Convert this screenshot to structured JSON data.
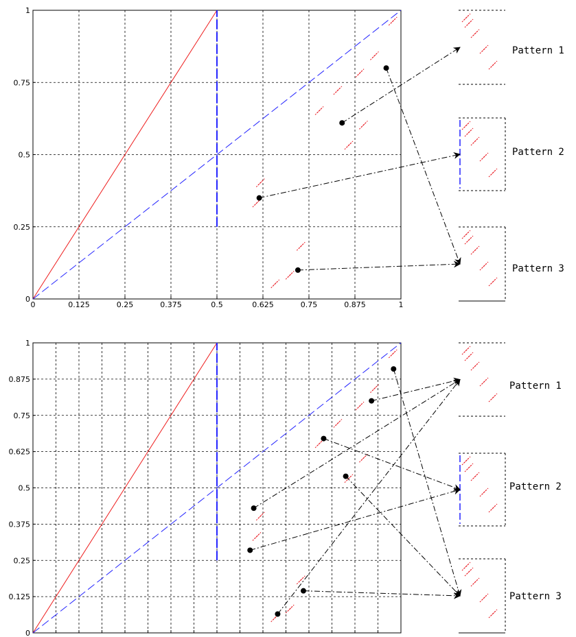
{
  "chart_data": [
    {
      "type": "line",
      "xlim": [
        0,
        1
      ],
      "ylim": [
        0,
        1
      ],
      "xticks": [
        "0",
        "0.125",
        "0.25",
        "0.375",
        "0.5",
        "0.625",
        "0.75",
        "0.875",
        "1"
      ],
      "yticks": [
        "0",
        "0.25",
        "0.5",
        "0.75",
        "1"
      ],
      "grid": true,
      "series": [
        {
          "style": "solid-red",
          "points": [
            [
              0,
              0
            ],
            [
              0.5,
              1
            ]
          ]
        },
        {
          "style": "dashed-blue",
          "points": [
            [
              0,
              0
            ],
            [
              0.5,
              0.5
            ],
            [
              1,
              1
            ]
          ]
        },
        {
          "style": "dashed-blue-vertical",
          "points": [
            [
              0.5,
              0.25
            ],
            [
              0.5,
              1
            ]
          ]
        }
      ],
      "patterns": [
        "Pattern 1",
        "Pattern 2",
        "Pattern 3"
      ],
      "markers": [
        {
          "x": 0.615,
          "y": 0.35,
          "target": 2
        },
        {
          "x": 0.84,
          "y": 0.61,
          "target": 1
        },
        {
          "x": 0.96,
          "y": 0.8,
          "target": 3
        },
        {
          "x": 0.72,
          "y": 0.1,
          "target": 3
        }
      ]
    },
    {
      "type": "line",
      "xlim": [
        0,
        1
      ],
      "ylim": [
        0,
        1
      ],
      "xticks": [
        "0",
        "0.0625",
        "0.125",
        "0.1875",
        "0.25",
        "0.3125",
        "0.375",
        "0.4375",
        "0.5",
        "0.5625",
        "0.625",
        "0.6875",
        "0.75",
        "0.8125",
        "0.875",
        "0.9375",
        "1"
      ],
      "yticks": [
        "0",
        "0.125",
        "0.25",
        "0.375",
        "0.5",
        "0.625",
        "0.75",
        "0.875",
        "1"
      ],
      "grid": true,
      "series": [
        {
          "style": "solid-red",
          "points": [
            [
              0,
              0
            ],
            [
              0.5,
              1
            ]
          ]
        },
        {
          "style": "dashed-blue",
          "points": [
            [
              0,
              0
            ],
            [
              0.5,
              0.5
            ],
            [
              1,
              1
            ]
          ]
        },
        {
          "style": "dashed-blue-vertical",
          "points": [
            [
              0.5,
              0.25
            ],
            [
              0.5,
              1
            ]
          ]
        }
      ],
      "patterns": [
        "Pattern 1",
        "Pattern 2",
        "Pattern 3"
      ],
      "markers": [
        {
          "x": 0.59,
          "y": 0.285,
          "target": 2
        },
        {
          "x": 0.6,
          "y": 0.43,
          "target": 1
        },
        {
          "x": 0.79,
          "y": 0.67,
          "target": 2
        },
        {
          "x": 0.85,
          "y": 0.54,
          "target": 3
        },
        {
          "x": 0.92,
          "y": 0.8,
          "target": 1
        },
        {
          "x": 0.98,
          "y": 0.91,
          "target": 3
        },
        {
          "x": 0.665,
          "y": 0.065,
          "target": 1
        },
        {
          "x": 0.735,
          "y": 0.145,
          "target": 3
        }
      ]
    }
  ]
}
